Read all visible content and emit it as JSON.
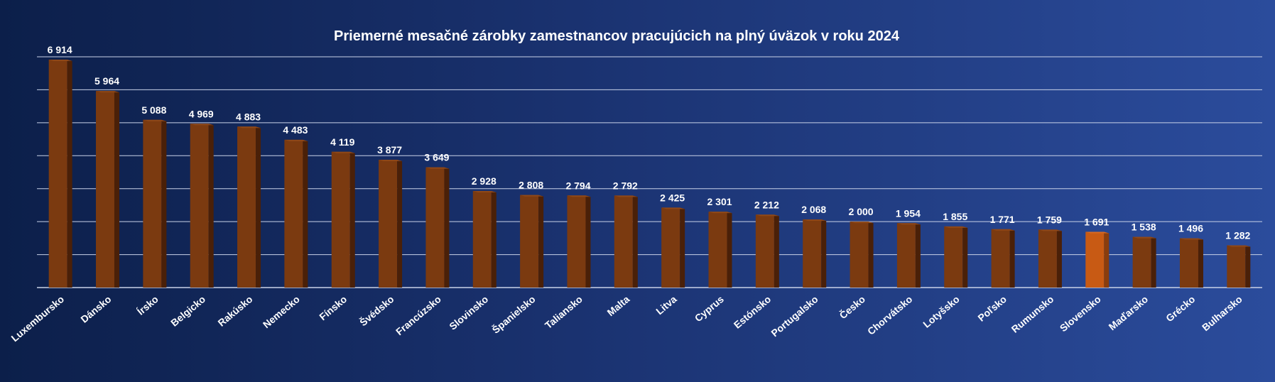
{
  "chart_data": {
    "type": "bar",
    "title": "Priemerné mesačné zárobky zamestnancov pracujúcich na plný úväzok v roku 2024",
    "xlabel": "",
    "ylabel": "",
    "ylim": [
      0,
      7000
    ],
    "grid": true,
    "categories": [
      "Luxembursko",
      "Dánsko",
      "Írsko",
      "Belgicko",
      "Rakúsko",
      "Nemecko",
      "Fínsko",
      "Švédsko",
      "Francúzsko",
      "Slovinsko",
      "Španielsko",
      "Taliansko",
      "Malta",
      "Litva",
      "Cyprus",
      "Estónsko",
      "Portugalsko",
      "Česko",
      "Chorvátsko",
      "Lotyšsko",
      "Poľsko",
      "Rumunsko",
      "Slovensko",
      "Maďarsko",
      "Grécko",
      "Bulharsko"
    ],
    "values": [
      6914,
      5964,
      5088,
      4969,
      4883,
      4483,
      4119,
      3877,
      3649,
      2928,
      2808,
      2794,
      2792,
      2425,
      2301,
      2212,
      2068,
      2000,
      1954,
      1855,
      1771,
      1759,
      1691,
      1538,
      1496,
      1282
    ],
    "value_labels": [
      "6 914",
      "5 964",
      "5 088",
      "4 969",
      "4 883",
      "4 483",
      "4 119",
      "3 877",
      "3 649",
      "2 928",
      "2 808",
      "2 794",
      "2 792",
      "2 425",
      "2 301",
      "2 212",
      "2 068",
      "2 000",
      "1 954",
      "1 855",
      "1 771",
      "1 759",
      "1 691",
      "1 538",
      "1 496",
      "1 282"
    ],
    "highlight_category": "Slovensko",
    "colors": {
      "bar_front": "#7b3a10",
      "bar_side": "#4a2008",
      "bar_top": "#8f4818",
      "highlight_front": "#c85a14",
      "highlight_side": "#8a3d0d",
      "highlight_top": "#d96a22",
      "grid": "#c9d2e8",
      "text": "#ffffff"
    }
  }
}
